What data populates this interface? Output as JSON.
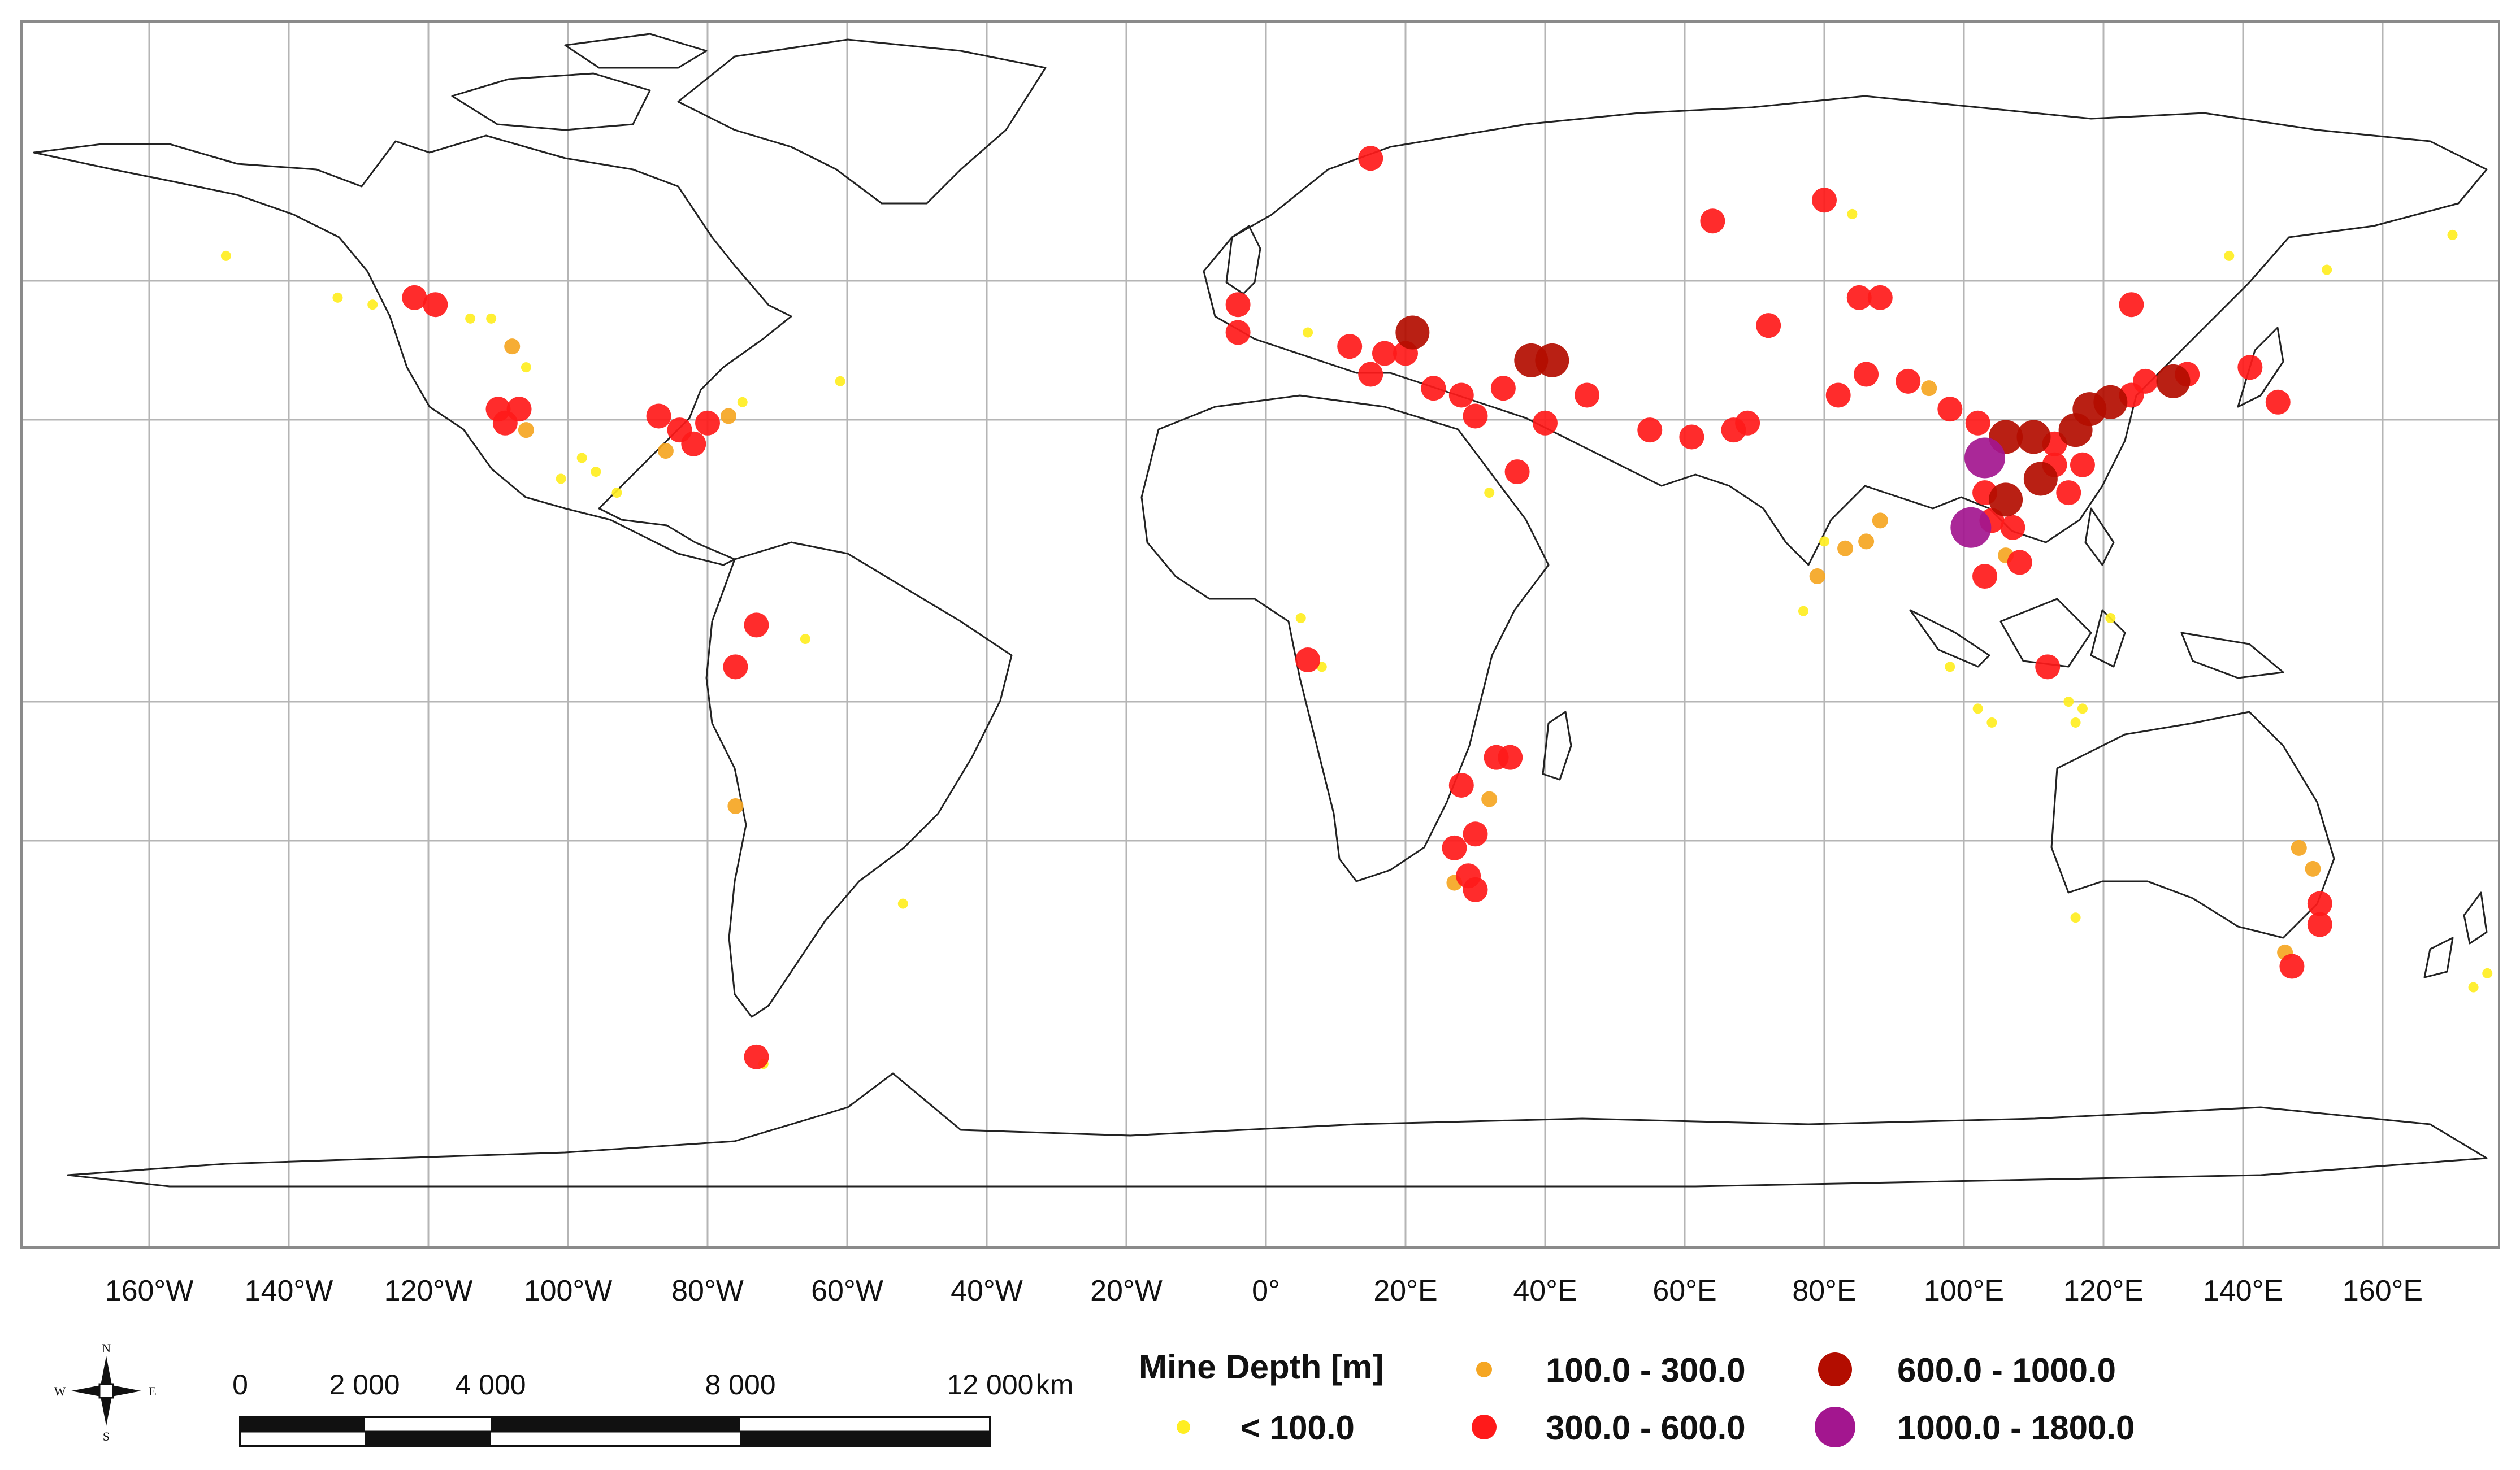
{
  "map": {
    "longitude_labels": [
      "160°W",
      "140°W",
      "120°W",
      "100°W",
      "80°W",
      "60°W",
      "40°W",
      "20°W",
      "0°",
      "20°E",
      "40°E",
      "60°E",
      "80°E",
      "100°E",
      "120°E",
      "140°E",
      "160°E"
    ]
  },
  "legend": {
    "title": "Mine Depth [m]",
    "classes": [
      {
        "label": "< 100.0",
        "color": "#ffee22"
      },
      {
        "label": "100.0 - 300.0",
        "color": "#f5a623"
      },
      {
        "label": "300.0 - 600.0",
        "color": "#ff1a1a"
      },
      {
        "label": "600.0 - 1000.0",
        "color": "#b30d00"
      },
      {
        "label": "1000.0 - 1800.0",
        "color": "#a3168f"
      }
    ]
  },
  "scale_bar": {
    "tick_labels": [
      "0",
      "2 000",
      "4 000",
      "8 000",
      "12 000"
    ],
    "unit": "km"
  },
  "compass": {
    "n": "N",
    "s": "S",
    "e": "E",
    "w": "W"
  },
  "mine_clusters": [
    {
      "lon": -149,
      "lat": 64,
      "cls": 0
    },
    {
      "lon": -133,
      "lat": 58,
      "cls": 0
    },
    {
      "lon": -128,
      "lat": 57,
      "cls": 0
    },
    {
      "lon": -122,
      "lat": 58,
      "cls": 2
    },
    {
      "lon": -119,
      "lat": 57,
      "cls": 2
    },
    {
      "lon": -114,
      "lat": 55,
      "cls": 0
    },
    {
      "lon": -111,
      "lat": 55,
      "cls": 0
    },
    {
      "lon": -108,
      "lat": 51,
      "cls": 1
    },
    {
      "lon": -106,
      "lat": 48,
      "cls": 0
    },
    {
      "lon": -110,
      "lat": 42,
      "cls": 2
    },
    {
      "lon": -107,
      "lat": 42,
      "cls": 2
    },
    {
      "lon": -109,
      "lat": 40,
      "cls": 2
    },
    {
      "lon": -106,
      "lat": 39,
      "cls": 1
    },
    {
      "lon": -98,
      "lat": 35,
      "cls": 0
    },
    {
      "lon": -101,
      "lat": 32,
      "cls": 0
    },
    {
      "lon": -96,
      "lat": 33,
      "cls": 0
    },
    {
      "lon": -93,
      "lat": 30,
      "cls": 0
    },
    {
      "lon": -87,
      "lat": 41,
      "cls": 2
    },
    {
      "lon": -84,
      "lat": 39,
      "cls": 2
    },
    {
      "lon": -82,
      "lat": 37,
      "cls": 2
    },
    {
      "lon": -80,
      "lat": 40,
      "cls": 2
    },
    {
      "lon": -77,
      "lat": 41,
      "cls": 1
    },
    {
      "lon": -75,
      "lat": 43,
      "cls": 0
    },
    {
      "lon": -86,
      "lat": 36,
      "cls": 1
    },
    {
      "lon": -61,
      "lat": 46,
      "cls": 0
    },
    {
      "lon": -73,
      "lat": 11,
      "cls": 2
    },
    {
      "lon": -76,
      "lat": 5,
      "cls": 2
    },
    {
      "lon": -66,
      "lat": 9,
      "cls": 0
    },
    {
      "lon": -76,
      "lat": -15,
      "cls": 1
    },
    {
      "lon": -52,
      "lat": -29,
      "cls": 0
    },
    {
      "lon": -73,
      "lat": -51,
      "cls": 2
    },
    {
      "lon": -72,
      "lat": -52,
      "cls": 0
    },
    {
      "lon": -4,
      "lat": 57,
      "cls": 2
    },
    {
      "lon": -4,
      "lat": 53,
      "cls": 2
    },
    {
      "lon": 6,
      "lat": 53,
      "cls": 0
    },
    {
      "lon": 15,
      "lat": 78,
      "cls": 2
    },
    {
      "lon": 12,
      "lat": 51,
      "cls": 2
    },
    {
      "lon": 17,
      "lat": 50,
      "cls": 2
    },
    {
      "lon": 21,
      "lat": 53,
      "cls": 3
    },
    {
      "lon": 20,
      "lat": 50,
      "cls": 2
    },
    {
      "lon": 15,
      "lat": 47,
      "cls": 2
    },
    {
      "lon": 24,
      "lat": 45,
      "cls": 2
    },
    {
      "lon": 28,
      "lat": 44,
      "cls": 2
    },
    {
      "lon": 34,
      "lat": 45,
      "cls": 2
    },
    {
      "lon": 30,
      "lat": 41,
      "cls": 2
    },
    {
      "lon": 38,
      "lat": 49,
      "cls": 3
    },
    {
      "lon": 41,
      "lat": 49,
      "cls": 3
    },
    {
      "lon": 46,
      "lat": 44,
      "cls": 2
    },
    {
      "lon": 40,
      "lat": 40,
      "cls": 2
    },
    {
      "lon": 36,
      "lat": 33,
      "cls": 2
    },
    {
      "lon": 32,
      "lat": 30,
      "cls": 0
    },
    {
      "lon": 55,
      "lat": 39,
      "cls": 2
    },
    {
      "lon": 61,
      "lat": 38,
      "cls": 2
    },
    {
      "lon": 67,
      "lat": 39,
      "cls": 2
    },
    {
      "lon": 69,
      "lat": 40,
      "cls": 2
    },
    {
      "lon": 64,
      "lat": 69,
      "cls": 2
    },
    {
      "lon": 80,
      "lat": 72,
      "cls": 2
    },
    {
      "lon": 84,
      "lat": 70,
      "cls": 0
    },
    {
      "lon": 72,
      "lat": 54,
      "cls": 2
    },
    {
      "lon": 85,
      "lat": 58,
      "cls": 2
    },
    {
      "lon": 88,
      "lat": 58,
      "cls": 2
    },
    {
      "lon": 82,
      "lat": 44,
      "cls": 2
    },
    {
      "lon": 86,
      "lat": 47,
      "cls": 2
    },
    {
      "lon": 92,
      "lat": 46,
      "cls": 2
    },
    {
      "lon": 95,
      "lat": 45,
      "cls": 1
    },
    {
      "lon": 98,
      "lat": 42,
      "cls": 2
    },
    {
      "lon": 102,
      "lat": 40,
      "cls": 2
    },
    {
      "lon": 106,
      "lat": 38,
      "cls": 3
    },
    {
      "lon": 110,
      "lat": 38,
      "cls": 3
    },
    {
      "lon": 113,
      "lat": 37,
      "cls": 2
    },
    {
      "lon": 116,
      "lat": 39,
      "cls": 3
    },
    {
      "lon": 118,
      "lat": 42,
      "cls": 3
    },
    {
      "lon": 121,
      "lat": 43,
      "cls": 3
    },
    {
      "lon": 124,
      "lat": 44,
      "cls": 2
    },
    {
      "lon": 126,
      "lat": 46,
      "cls": 2
    },
    {
      "lon": 130,
      "lat": 46,
      "cls": 3
    },
    {
      "lon": 132,
      "lat": 47,
      "cls": 2
    },
    {
      "lon": 124,
      "lat": 57,
      "cls": 2
    },
    {
      "lon": 141,
      "lat": 48,
      "cls": 2
    },
    {
      "lon": 145,
      "lat": 43,
      "cls": 2
    },
    {
      "lon": 113,
      "lat": 34,
      "cls": 2
    },
    {
      "lon": 117,
      "lat": 34,
      "cls": 2
    },
    {
      "lon": 111,
      "lat": 32,
      "cls": 3
    },
    {
      "lon": 115,
      "lat": 30,
      "cls": 2
    },
    {
      "lon": 103,
      "lat": 30,
      "cls": 2
    },
    {
      "lon": 106,
      "lat": 29,
      "cls": 3
    },
    {
      "lon": 104,
      "lat": 26,
      "cls": 2
    },
    {
      "lon": 101,
      "lat": 25,
      "cls": 4
    },
    {
      "lon": 103,
      "lat": 35,
      "cls": 4
    },
    {
      "lon": 107,
      "lat": 25,
      "cls": 2
    },
    {
      "lon": 108,
      "lat": 20,
      "cls": 2
    },
    {
      "lon": 106,
      "lat": 21,
      "cls": 1
    },
    {
      "lon": 103,
      "lat": 18,
      "cls": 2
    },
    {
      "lon": 86,
      "lat": 23,
      "cls": 1
    },
    {
      "lon": 83,
      "lat": 22,
      "cls": 1
    },
    {
      "lon": 80,
      "lat": 23,
      "cls": 0
    },
    {
      "lon": 79,
      "lat": 18,
      "cls": 1
    },
    {
      "lon": 77,
      "lat": 13,
      "cls": 0
    },
    {
      "lon": 88,
      "lat": 26,
      "cls": 1
    },
    {
      "lon": 98,
      "lat": 5,
      "cls": 0
    },
    {
      "lon": 102,
      "lat": -1,
      "cls": 0
    },
    {
      "lon": 104,
      "lat": -3,
      "cls": 0
    },
    {
      "lon": 112,
      "lat": 5,
      "cls": 2
    },
    {
      "lon": 115,
      "lat": 0,
      "cls": 0
    },
    {
      "lon": 116,
      "lat": -3,
      "cls": 0
    },
    {
      "lon": 117,
      "lat": -1,
      "cls": 0
    },
    {
      "lon": 6,
      "lat": 6,
      "cls": 2
    },
    {
      "lon": 8,
      "lat": 5,
      "cls": 0
    },
    {
      "lon": 5,
      "lat": 12,
      "cls": 0
    },
    {
      "lon": 28,
      "lat": -12,
      "cls": 2
    },
    {
      "lon": 33,
      "lat": -8,
      "cls": 2
    },
    {
      "lon": 35,
      "lat": -8,
      "cls": 2
    },
    {
      "lon": 32,
      "lat": -14,
      "cls": 1
    },
    {
      "lon": 30,
      "lat": -19,
      "cls": 2
    },
    {
      "lon": 27,
      "lat": -21,
      "cls": 2
    },
    {
      "lon": 29,
      "lat": -25,
      "cls": 2
    },
    {
      "lon": 30,
      "lat": -27,
      "cls": 2
    },
    {
      "lon": 27,
      "lat": -26,
      "cls": 1
    },
    {
      "lon": 148,
      "lat": -21,
      "cls": 1
    },
    {
      "lon": 150,
      "lat": -24,
      "cls": 1
    },
    {
      "lon": 151,
      "lat": -29,
      "cls": 2
    },
    {
      "lon": 151,
      "lat": -32,
      "cls": 2
    },
    {
      "lon": 146,
      "lat": -36,
      "cls": 1
    },
    {
      "lon": 147,
      "lat": -38,
      "cls": 2
    },
    {
      "lon": 173,
      "lat": -41,
      "cls": 0
    },
    {
      "lon": 175,
      "lat": -39,
      "cls": 0
    },
    {
      "lon": 116,
      "lat": -31,
      "cls": 0
    },
    {
      "lon": 121,
      "lat": 12,
      "cls": 0
    },
    {
      "lon": 138,
      "lat": 64,
      "cls": 0
    },
    {
      "lon": 152,
      "lat": 62,
      "cls": 0
    },
    {
      "lon": 170,
      "lat": 67,
      "cls": 0
    }
  ]
}
